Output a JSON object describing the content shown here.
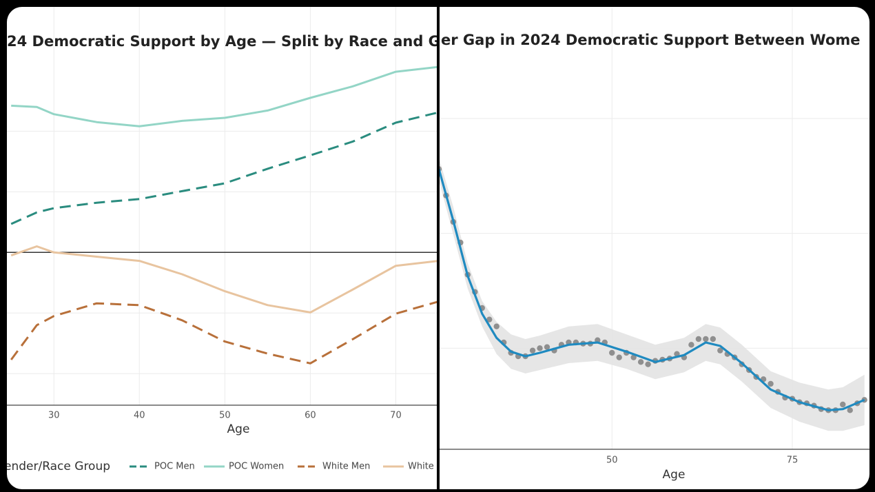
{
  "chart_data": [
    {
      "type": "line",
      "title": "24 Democratic Support by Age — Split by Race and G",
      "x_label": "Age",
      "legend_title": "ender/Race Group",
      "x": [
        25,
        28,
        30,
        35,
        40,
        45,
        50,
        55,
        60,
        65,
        70,
        75
      ],
      "series": [
        {
          "name": "POC Men",
          "color": "#2a8c7f",
          "dash": true,
          "values": [
            54.7,
            56.6,
            57.3,
            58.2,
            58.8,
            60.1,
            61.4,
            63.8,
            66.0,
            68.3,
            71.4,
            73.1
          ]
        },
        {
          "name": "POC Women",
          "color": "#93d5c6",
          "dash": false,
          "values": [
            74.2,
            74.0,
            72.8,
            71.5,
            70.8,
            71.7,
            72.2,
            73.4,
            75.5,
            77.4,
            79.8,
            80.6
          ]
        },
        {
          "name": "White Men",
          "color": "#b8703a",
          "dash": true,
          "values": [
            32.3,
            38.0,
            39.5,
            41.6,
            41.3,
            38.8,
            35.3,
            33.3,
            31.7,
            35.7,
            39.9,
            41.9
          ]
        },
        {
          "name": "White",
          "color": "#e8c49f",
          "dash": false,
          "values": [
            49.5,
            51.0,
            50.0,
            49.3,
            48.6,
            46.4,
            43.6,
            41.3,
            40.1,
            43.9,
            47.8,
            48.6
          ]
        }
      ],
      "xlim": [
        24.5,
        74.8
      ],
      "xticks": [
        30,
        40,
        50,
        60,
        70
      ],
      "ylim": [
        24.8,
        90.5
      ],
      "ygrid": [
        30,
        40,
        60,
        70
      ],
      "hline": 50,
      "grid": true,
      "legend": "bottom"
    },
    {
      "type": "scatter_smooth",
      "title": "er Gap in 2024 Democratic Support Between Wome",
      "x_label": "Age",
      "x": [
        26,
        27,
        28,
        29,
        30,
        31,
        32,
        33,
        34,
        35,
        36,
        37,
        38,
        39,
        40,
        41,
        42,
        43,
        44,
        45,
        46,
        47,
        48,
        49,
        50,
        51,
        52,
        53,
        54,
        55,
        56,
        57,
        58,
        59,
        60,
        61,
        62,
        63,
        64,
        65,
        66,
        67,
        68,
        69,
        70,
        71,
        72,
        73,
        74,
        75,
        76,
        77,
        78,
        79,
        80,
        81,
        82,
        83,
        84,
        85
      ],
      "values": [
        25.6,
        23.3,
        21.0,
        19.2,
        16.4,
        14.9,
        13.5,
        12.5,
        11.9,
        10.5,
        9.6,
        9.3,
        9.3,
        9.8,
        10.0,
        10.1,
        9.8,
        10.3,
        10.5,
        10.5,
        10.4,
        10.4,
        10.7,
        10.5,
        9.6,
        9.2,
        9.6,
        9.2,
        8.8,
        8.6,
        8.9,
        9.0,
        9.1,
        9.5,
        9.2,
        10.3,
        10.8,
        10.8,
        10.8,
        9.8,
        9.5,
        9.2,
        8.6,
        8.1,
        7.5,
        7.3,
        6.9,
        6.2,
        5.7,
        5.6,
        5.3,
        5.2,
        5.0,
        4.7,
        4.6,
        4.6,
        5.1,
        4.6,
        5.2,
        5.5
      ],
      "color": "#7f7f7f",
      "fit": {
        "color": "#1f8ac0",
        "band_color": "#e3e3e3",
        "x": [
          26,
          28,
          30,
          32,
          34,
          36,
          38,
          40,
          44,
          48,
          52,
          56,
          60,
          63,
          65,
          68,
          72,
          76,
          80,
          82,
          85
        ],
        "values": [
          25.6,
          21.1,
          16.3,
          13.0,
          10.9,
          9.7,
          9.3,
          9.6,
          10.3,
          10.5,
          9.7,
          8.8,
          9.4,
          10.5,
          10.2,
          8.7,
          6.4,
          5.3,
          4.6,
          4.7,
          5.5
        ],
        "lower": [
          24.6,
          19.9,
          15.2,
          11.9,
          9.5,
          8.2,
          7.8,
          8.1,
          8.7,
          8.9,
          8.2,
          7.3,
          7.9,
          8.9,
          8.6,
          7.1,
          4.8,
          3.6,
          2.8,
          2.8,
          3.3
        ],
        "upper": [
          26.6,
          22.3,
          17.4,
          14.1,
          12.3,
          11.2,
          10.8,
          11.1,
          11.9,
          12.1,
          11.2,
          10.3,
          10.9,
          12.1,
          11.8,
          10.3,
          8.0,
          7.0,
          6.4,
          6.6,
          7.7
        ]
      },
      "xlim": [
        26.1,
        85.7
      ],
      "xticks": [
        50,
        75
      ],
      "ylim": [
        1.2,
        39.6
      ],
      "ygrid": [
        10,
        20,
        30
      ],
      "grid": true
    }
  ]
}
